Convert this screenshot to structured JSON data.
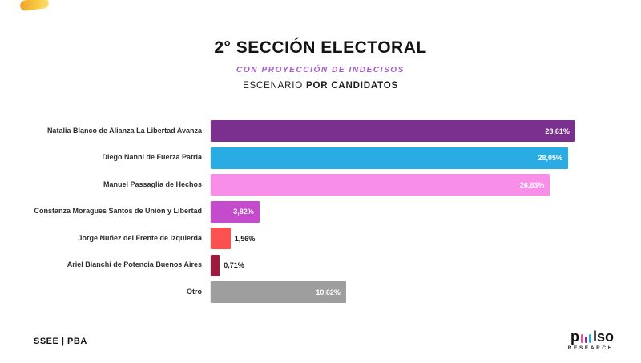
{
  "header": {
    "title": "2° SECCIÓN ELECTORAL",
    "subtitle": "CON PROYECCIÓN DE INDECISOS",
    "scenario_prefix": "ESCENARIO",
    "scenario_bold": "POR CANDIDATOS"
  },
  "chart_data": {
    "type": "bar",
    "orientation": "horizontal",
    "title": "2° SECCIÓN ELECTORAL",
    "xlabel": "",
    "ylabel": "",
    "xlim": [
      0,
      30
    ],
    "grid": false,
    "categories": [
      "Natalia Blanco de Alianza La Libertad Avanza",
      "Diego Nanni de Fuerza Patria",
      "Manuel Passaglia de Hechos",
      "Constanza Moragues Santos de Unión y Libertad",
      "Jorge Nuñez del Frente de Izquierda",
      "Ariel Bianchi de Potencia Buenos Aires",
      "Otro"
    ],
    "values": [
      28.61,
      28.05,
      26.63,
      3.82,
      1.56,
      0.71,
      10.62
    ],
    "value_labels": [
      "28,61%",
      "28,05%",
      "26,63%",
      "3,82%",
      "1,56%",
      "0,71%",
      "10,62%"
    ],
    "colors": [
      "#7b2f8e",
      "#2aabe4",
      "#f98ee9",
      "#c44ccc",
      "#fb5150",
      "#9c1b3f",
      "#9e9e9e"
    ],
    "inside_label_threshold": 3
  },
  "footer": {
    "source": "SSEE | PBA",
    "logo_p": "p",
    "logo_rest": "lso",
    "logo_sub": "RESEARCH",
    "logo_bar_colors": [
      "#e54f9b",
      "#7b2f8e",
      "#2aabe4"
    ]
  }
}
